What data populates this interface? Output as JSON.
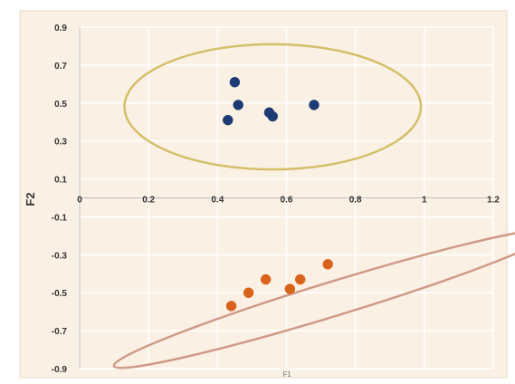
{
  "chart_data": {
    "type": "scatter",
    "title": "",
    "xlabel": "F1",
    "ylabel": "F2",
    "xlim": [
      0,
      1.2
    ],
    "ylim": [
      -0.9,
      0.9
    ],
    "x_ticks": [
      "0",
      "0.2",
      "0.4",
      "0.6",
      "0.8",
      "1",
      "1.2"
    ],
    "y_ticks": [
      "0.9",
      "0.7",
      "0.5",
      "0.3",
      "0.1",
      "-0.1",
      "-0.3",
      "-0.5",
      "-0.7",
      "-0.9"
    ],
    "x_tick_values": [
      0,
      0.2,
      0.4,
      0.6,
      0.8,
      1.0,
      1.2
    ],
    "y_tick_values": [
      0.9,
      0.7,
      0.5,
      0.3,
      0.1,
      -0.1,
      -0.3,
      -0.5,
      -0.7,
      -0.9
    ],
    "grid": true,
    "series": [
      {
        "color": "#1f3b73",
        "points": [
          {
            "x": 0.43,
            "y": 0.41
          },
          {
            "x": 0.45,
            "y": 0.61
          },
          {
            "x": 0.46,
            "y": 0.49
          },
          {
            "x": 0.55,
            "y": 0.45
          },
          {
            "x": 0.56,
            "y": 0.43
          },
          {
            "x": 0.68,
            "y": 0.49
          }
        ]
      },
      {
        "color": "#d9631b",
        "points": [
          {
            "x": 0.44,
            "y": -0.57
          },
          {
            "x": 0.49,
            "y": -0.5
          },
          {
            "x": 0.54,
            "y": -0.43
          },
          {
            "x": 0.61,
            "y": -0.48
          },
          {
            "x": 0.64,
            "y": -0.43
          },
          {
            "x": 0.72,
            "y": -0.35
          }
        ]
      }
    ],
    "confidence_ellipses": [
      {
        "color": "#d4bf6a",
        "cx": 0.56,
        "cy": 0.48,
        "rx": 0.43,
        "ry": 0.33,
        "angle_deg": 0
      },
      {
        "color": "#cf9a86",
        "cx": 0.74,
        "cy": -0.53,
        "rx": 0.67,
        "ry": 0.09,
        "angle_deg": -17
      }
    ],
    "colors": {
      "background": "#fbf0e4",
      "gridline": "#ffffff",
      "axis": "#bfbfbf",
      "text": "#333333"
    }
  }
}
